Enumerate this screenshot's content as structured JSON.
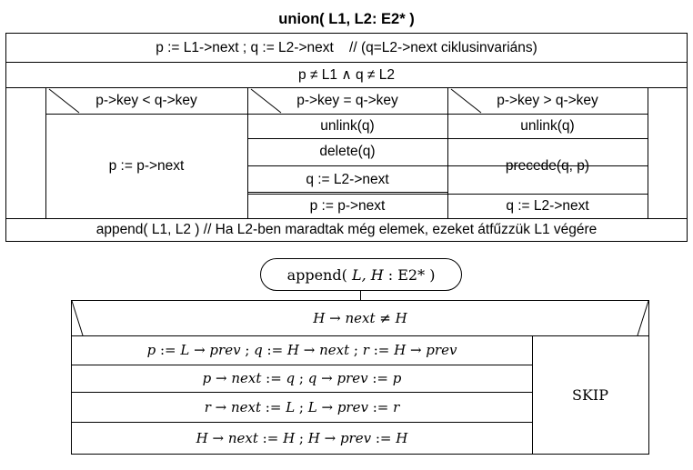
{
  "union": {
    "title": "union( L1, L2: E2* )",
    "init": "p := L1->next ; q := L2->next    // (q=L2->next ciklusinvariáns)",
    "loop_condition": "p ≠ L1 ∧ q ≠ L2",
    "branches": [
      {
        "condition": "p->key < q->key",
        "statements": [
          "p := p->next"
        ]
      },
      {
        "condition": "p->key = q->key",
        "statements": [
          "unlink(q)",
          "delete(q)",
          "q := L2->next",
          "p := p->next"
        ]
      },
      {
        "condition": "p->key > q->key",
        "statements": [
          "unlink(q)",
          "precede(q, p)",
          "q := L2->next"
        ]
      }
    ],
    "final": "append( L1, L2 ) // Ha L2-ben maradtak még elemek, ezeket átfűzzük L1 végére"
  },
  "append": {
    "title_parts": [
      "append( ",
      "L, H",
      " : E2* )"
    ],
    "condition_parts": [
      "H",
      " → ",
      "next",
      " ≠ ",
      "H"
    ],
    "then_lines": [
      [
        "p",
        " := ",
        "L",
        " → ",
        "prev",
        " ; ",
        "q",
        " := ",
        "H",
        " → ",
        "next",
        " ; ",
        "r",
        " := ",
        "H",
        " → ",
        "prev"
      ],
      [
        "p",
        " → ",
        "next",
        " := ",
        "q",
        " ; ",
        "q",
        " → ",
        "prev",
        " := ",
        "p"
      ],
      [
        "r",
        " → ",
        "next",
        " := ",
        "L",
        " ; ",
        "L",
        " → ",
        "prev",
        " := ",
        "r"
      ],
      [
        "H",
        " → ",
        "next",
        " := ",
        "H",
        " ; ",
        "H",
        " → ",
        "prev",
        " := ",
        "H"
      ]
    ],
    "else": "SKIP"
  }
}
